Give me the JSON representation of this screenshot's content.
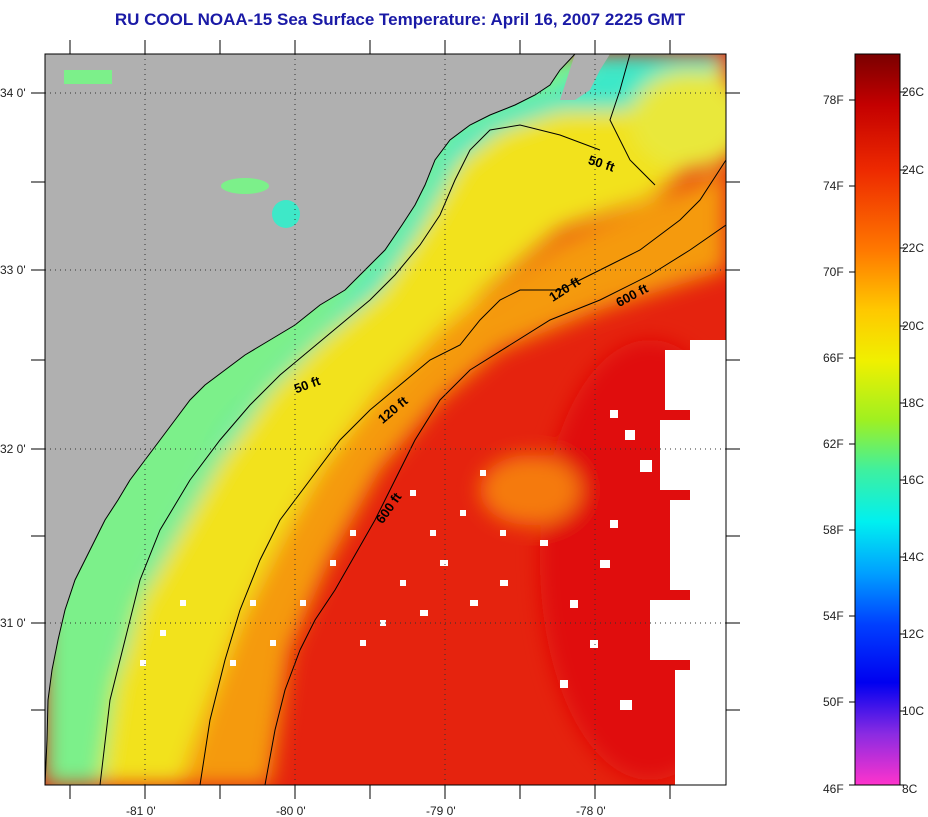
{
  "title": "RU COOL  NOAA-15  Sea Surface Temperature:  April 16, 2007 2225 GMT",
  "map": {
    "lon_labels": [
      "-81 0'",
      "-80 0'",
      "-79 0'",
      "-78 0'"
    ],
    "lat_labels": [
      "34 0'",
      "33 0'",
      "32 0'",
      "31 0'"
    ],
    "contours": [
      {
        "label": "50 ft"
      },
      {
        "label": "50 ft"
      },
      {
        "label": "120 ft"
      },
      {
        "label": "120 ft"
      },
      {
        "label": "600 ft"
      },
      {
        "label": "600 ft"
      }
    ],
    "colors": {
      "land": "#b0b0b0",
      "coastal": "#3ee8c8",
      "shelf": "#f2e21e",
      "mid": "#f59a10",
      "offshore": "#e5230e",
      "cloud": "#ffffff"
    }
  },
  "colorbar": {
    "f_labels": [
      "78F",
      "74F",
      "70F",
      "66F",
      "62F",
      "58F",
      "54F",
      "50F",
      "46F"
    ],
    "c_labels": [
      "26C",
      "24C",
      "22C",
      "20C",
      "18C",
      "16C",
      "14C",
      "12C",
      "10C",
      "8C"
    ],
    "gradient": [
      "#7a0000",
      "#c40000",
      "#ee2a00",
      "#ff7a00",
      "#ffc800",
      "#f0f000",
      "#a0f020",
      "#3ef0a0",
      "#00f0f0",
      "#00a0ff",
      "#0040ff",
      "#0000f0",
      "#8a2be2",
      "#ff33cc"
    ]
  }
}
